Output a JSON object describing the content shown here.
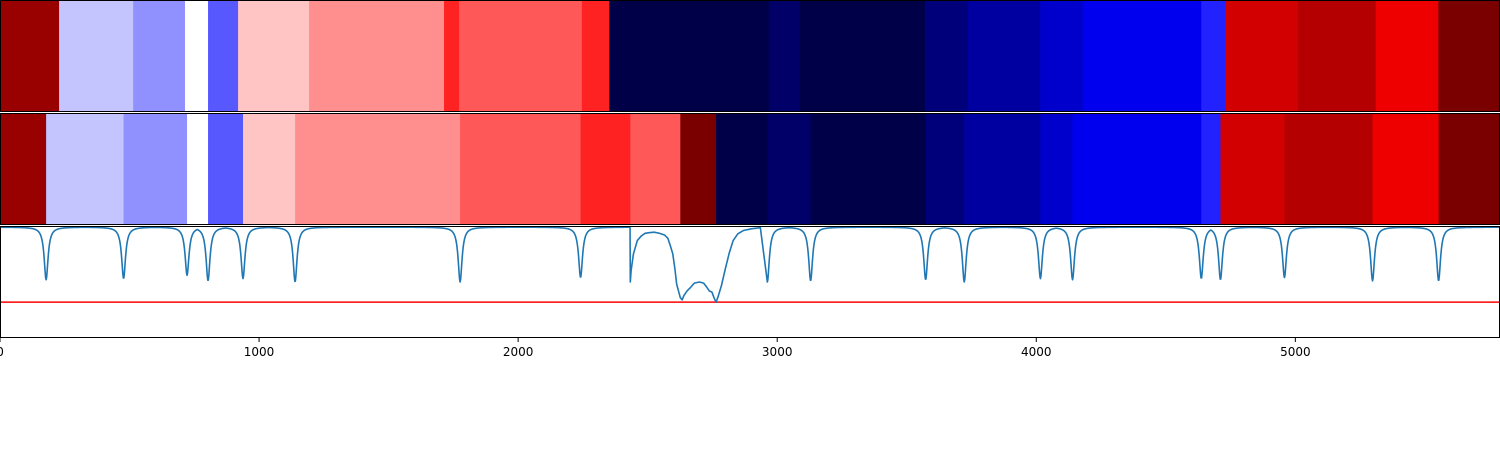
{
  "chart_data": {
    "type": "heatmap",
    "x_range": [
      0,
      5790
    ],
    "x_ticks": [
      {
        "value": 0,
        "label": "0"
      },
      {
        "value": 1000,
        "label": "1000"
      },
      {
        "value": 2000,
        "label": "2000"
      },
      {
        "value": 3000,
        "label": "3000"
      },
      {
        "value": 4000,
        "label": "4000"
      },
      {
        "value": 5000,
        "label": "5000"
      }
    ],
    "strips": [
      {
        "segments": [
          {
            "start": 0,
            "end": 228,
            "color": "#990000"
          },
          {
            "start": 228,
            "end": 514,
            "color": "#c4c4ff"
          },
          {
            "start": 514,
            "end": 714,
            "color": "#9090ff"
          },
          {
            "start": 714,
            "end": 803,
            "color": "#ffffff"
          },
          {
            "start": 803,
            "end": 919,
            "color": "#5858ff"
          },
          {
            "start": 919,
            "end": 1193,
            "color": "#ffc4c4"
          },
          {
            "start": 1193,
            "end": 1714,
            "color": "#ff8e8e"
          },
          {
            "start": 1714,
            "end": 1772,
            "color": "#ff2222"
          },
          {
            "start": 1772,
            "end": 2246,
            "color": "#ff5858"
          },
          {
            "start": 2246,
            "end": 2352,
            "color": "#ff2222"
          },
          {
            "start": 2352,
            "end": 2968,
            "color": "#000048"
          },
          {
            "start": 2968,
            "end": 3088,
            "color": "#000068"
          },
          {
            "start": 3088,
            "end": 3570,
            "color": "#000048"
          },
          {
            "start": 3570,
            "end": 3736,
            "color": "#00007a"
          },
          {
            "start": 3736,
            "end": 4015,
            "color": "#0000a0"
          },
          {
            "start": 4015,
            "end": 4180,
            "color": "#0000cc"
          },
          {
            "start": 4180,
            "end": 4637,
            "color": "#0000ee"
          },
          {
            "start": 4637,
            "end": 4730,
            "color": "#2222ff"
          },
          {
            "start": 4730,
            "end": 5010,
            "color": "#d20000"
          },
          {
            "start": 5010,
            "end": 5310,
            "color": "#b40000"
          },
          {
            "start": 5310,
            "end": 5552,
            "color": "#ee0000"
          },
          {
            "start": 5552,
            "end": 5790,
            "color": "#7a0000"
          }
        ]
      },
      {
        "segments": [
          {
            "start": 0,
            "end": 178,
            "color": "#990000"
          },
          {
            "start": 178,
            "end": 477,
            "color": "#c4c4ff"
          },
          {
            "start": 477,
            "end": 722,
            "color": "#9090ff"
          },
          {
            "start": 722,
            "end": 803,
            "color": "#ffffff"
          },
          {
            "start": 803,
            "end": 938,
            "color": "#5858ff"
          },
          {
            "start": 938,
            "end": 1139,
            "color": "#ffc4c4"
          },
          {
            "start": 1139,
            "end": 1776,
            "color": "#ff8e8e"
          },
          {
            "start": 1776,
            "end": 2241,
            "color": "#ff5858"
          },
          {
            "start": 2241,
            "end": 2433,
            "color": "#ff2222"
          },
          {
            "start": 2433,
            "end": 2626,
            "color": "#ff5858"
          },
          {
            "start": 2626,
            "end": 2764,
            "color": "#7a0000"
          },
          {
            "start": 2764,
            "end": 2962,
            "color": "#000048"
          },
          {
            "start": 2962,
            "end": 3129,
            "color": "#000068"
          },
          {
            "start": 3129,
            "end": 3573,
            "color": "#000048"
          },
          {
            "start": 3573,
            "end": 3722,
            "color": "#00007a"
          },
          {
            "start": 3722,
            "end": 4016,
            "color": "#0000a0"
          },
          {
            "start": 4016,
            "end": 4140,
            "color": "#0000cc"
          },
          {
            "start": 4140,
            "end": 4637,
            "color": "#0000ee"
          },
          {
            "start": 4637,
            "end": 4711,
            "color": "#2222ff"
          },
          {
            "start": 4711,
            "end": 4958,
            "color": "#d20000"
          },
          {
            "start": 4958,
            "end": 5298,
            "color": "#b40000"
          },
          {
            "start": 5298,
            "end": 5553,
            "color": "#ee0000"
          },
          {
            "start": 5553,
            "end": 5790,
            "color": "#7a0000"
          }
        ]
      }
    ],
    "line_panel": {
      "y_range": [
        0,
        1
      ],
      "threshold": 0.32,
      "threshold_color": "#ff0000",
      "line_color": "#1f77b4",
      "baseline": 0.99,
      "dips": [
        {
          "x": 178,
          "min": 0.52
        },
        {
          "x": 477,
          "min": 0.53
        },
        {
          "x": 722,
          "min": 0.56
        },
        {
          "x": 803,
          "min": 0.51
        },
        {
          "x": 938,
          "min": 0.53
        },
        {
          "x": 1139,
          "min": 0.5
        },
        {
          "x": 1776,
          "min": 0.5
        },
        {
          "x": 2241,
          "min": 0.54
        },
        {
          "x": 2962,
          "min": 0.5
        },
        {
          "x": 3129,
          "min": 0.51
        },
        {
          "x": 3573,
          "min": 0.52
        },
        {
          "x": 3722,
          "min": 0.5
        },
        {
          "x": 4016,
          "min": 0.53
        },
        {
          "x": 4140,
          "min": 0.52
        },
        {
          "x": 4637,
          "min": 0.53
        },
        {
          "x": 4711,
          "min": 0.52
        },
        {
          "x": 4958,
          "min": 0.54
        },
        {
          "x": 5298,
          "min": 0.51
        },
        {
          "x": 5553,
          "min": 0.51
        }
      ],
      "broad_segment": [
        {
          "x": 2433,
          "y": 0.5
        },
        {
          "x": 2436,
          "y": 0.6
        },
        {
          "x": 2445,
          "y": 0.75
        },
        {
          "x": 2460,
          "y": 0.87
        },
        {
          "x": 2475,
          "y": 0.91
        },
        {
          "x": 2490,
          "y": 0.935
        },
        {
          "x": 2505,
          "y": 0.94
        },
        {
          "x": 2525,
          "y": 0.945
        },
        {
          "x": 2545,
          "y": 0.935
        },
        {
          "x": 2565,
          "y": 0.92
        },
        {
          "x": 2578,
          "y": 0.89
        },
        {
          "x": 2588,
          "y": 0.82
        },
        {
          "x": 2597,
          "y": 0.75
        },
        {
          "x": 2605,
          "y": 0.62
        },
        {
          "x": 2612,
          "y": 0.48
        },
        {
          "x": 2619,
          "y": 0.42
        },
        {
          "x": 2626,
          "y": 0.36
        },
        {
          "x": 2633,
          "y": 0.34
        },
        {
          "x": 2640,
          "y": 0.38
        },
        {
          "x": 2652,
          "y": 0.42
        },
        {
          "x": 2665,
          "y": 0.45
        },
        {
          "x": 2680,
          "y": 0.49
        },
        {
          "x": 2700,
          "y": 0.5
        },
        {
          "x": 2716,
          "y": 0.49
        },
        {
          "x": 2726,
          "y": 0.46
        },
        {
          "x": 2738,
          "y": 0.42
        },
        {
          "x": 2748,
          "y": 0.41
        },
        {
          "x": 2756,
          "y": 0.36
        },
        {
          "x": 2764,
          "y": 0.32
        },
        {
          "x": 2772,
          "y": 0.37
        },
        {
          "x": 2785,
          "y": 0.47
        },
        {
          "x": 2800,
          "y": 0.62
        },
        {
          "x": 2815,
          "y": 0.76
        },
        {
          "x": 2830,
          "y": 0.87
        },
        {
          "x": 2848,
          "y": 0.93
        },
        {
          "x": 2870,
          "y": 0.96
        },
        {
          "x": 2900,
          "y": 0.975
        },
        {
          "x": 2935,
          "y": 0.985
        },
        {
          "x": 2962,
          "y": 0.5
        }
      ]
    }
  }
}
